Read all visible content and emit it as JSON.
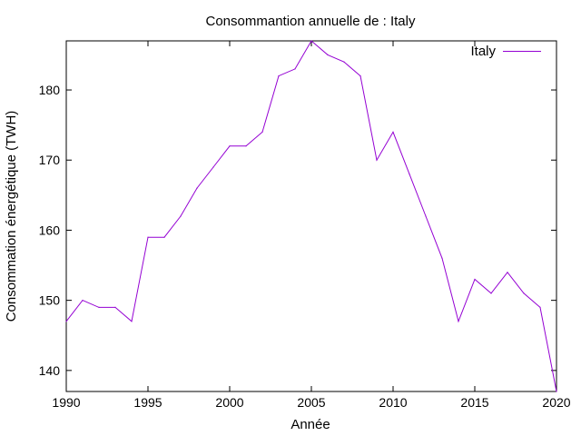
{
  "chart_data": {
    "type": "line",
    "title": "Consommantion annuelle de : Italy",
    "xlabel": "Année",
    "ylabel": "Consommation énergétique (TWH)",
    "xlim": [
      1990,
      2020
    ],
    "ylim": [
      137,
      187
    ],
    "x_ticks": [
      1990,
      1995,
      2000,
      2005,
      2010,
      2015,
      2020
    ],
    "y_ticks": [
      140,
      150,
      160,
      170,
      180
    ],
    "grid": false,
    "legend_position": "top-right",
    "series": [
      {
        "name": "Italy",
        "color": "#9400d3",
        "x": [
          1990,
          1991,
          1992,
          1993,
          1994,
          1995,
          1996,
          1997,
          1998,
          1999,
          2000,
          2001,
          2002,
          2003,
          2004,
          2005,
          2006,
          2007,
          2008,
          2009,
          2010,
          2011,
          2012,
          2013,
          2014,
          2015,
          2016,
          2017,
          2018,
          2019,
          2020
        ],
        "y": [
          147,
          150,
          149,
          149,
          147,
          159,
          159,
          162,
          166,
          169,
          172,
          172,
          174,
          182,
          183,
          187,
          185,
          184,
          182,
          170,
          174,
          168,
          162,
          156,
          147,
          153,
          151,
          154,
          151,
          149,
          137
        ]
      }
    ]
  }
}
